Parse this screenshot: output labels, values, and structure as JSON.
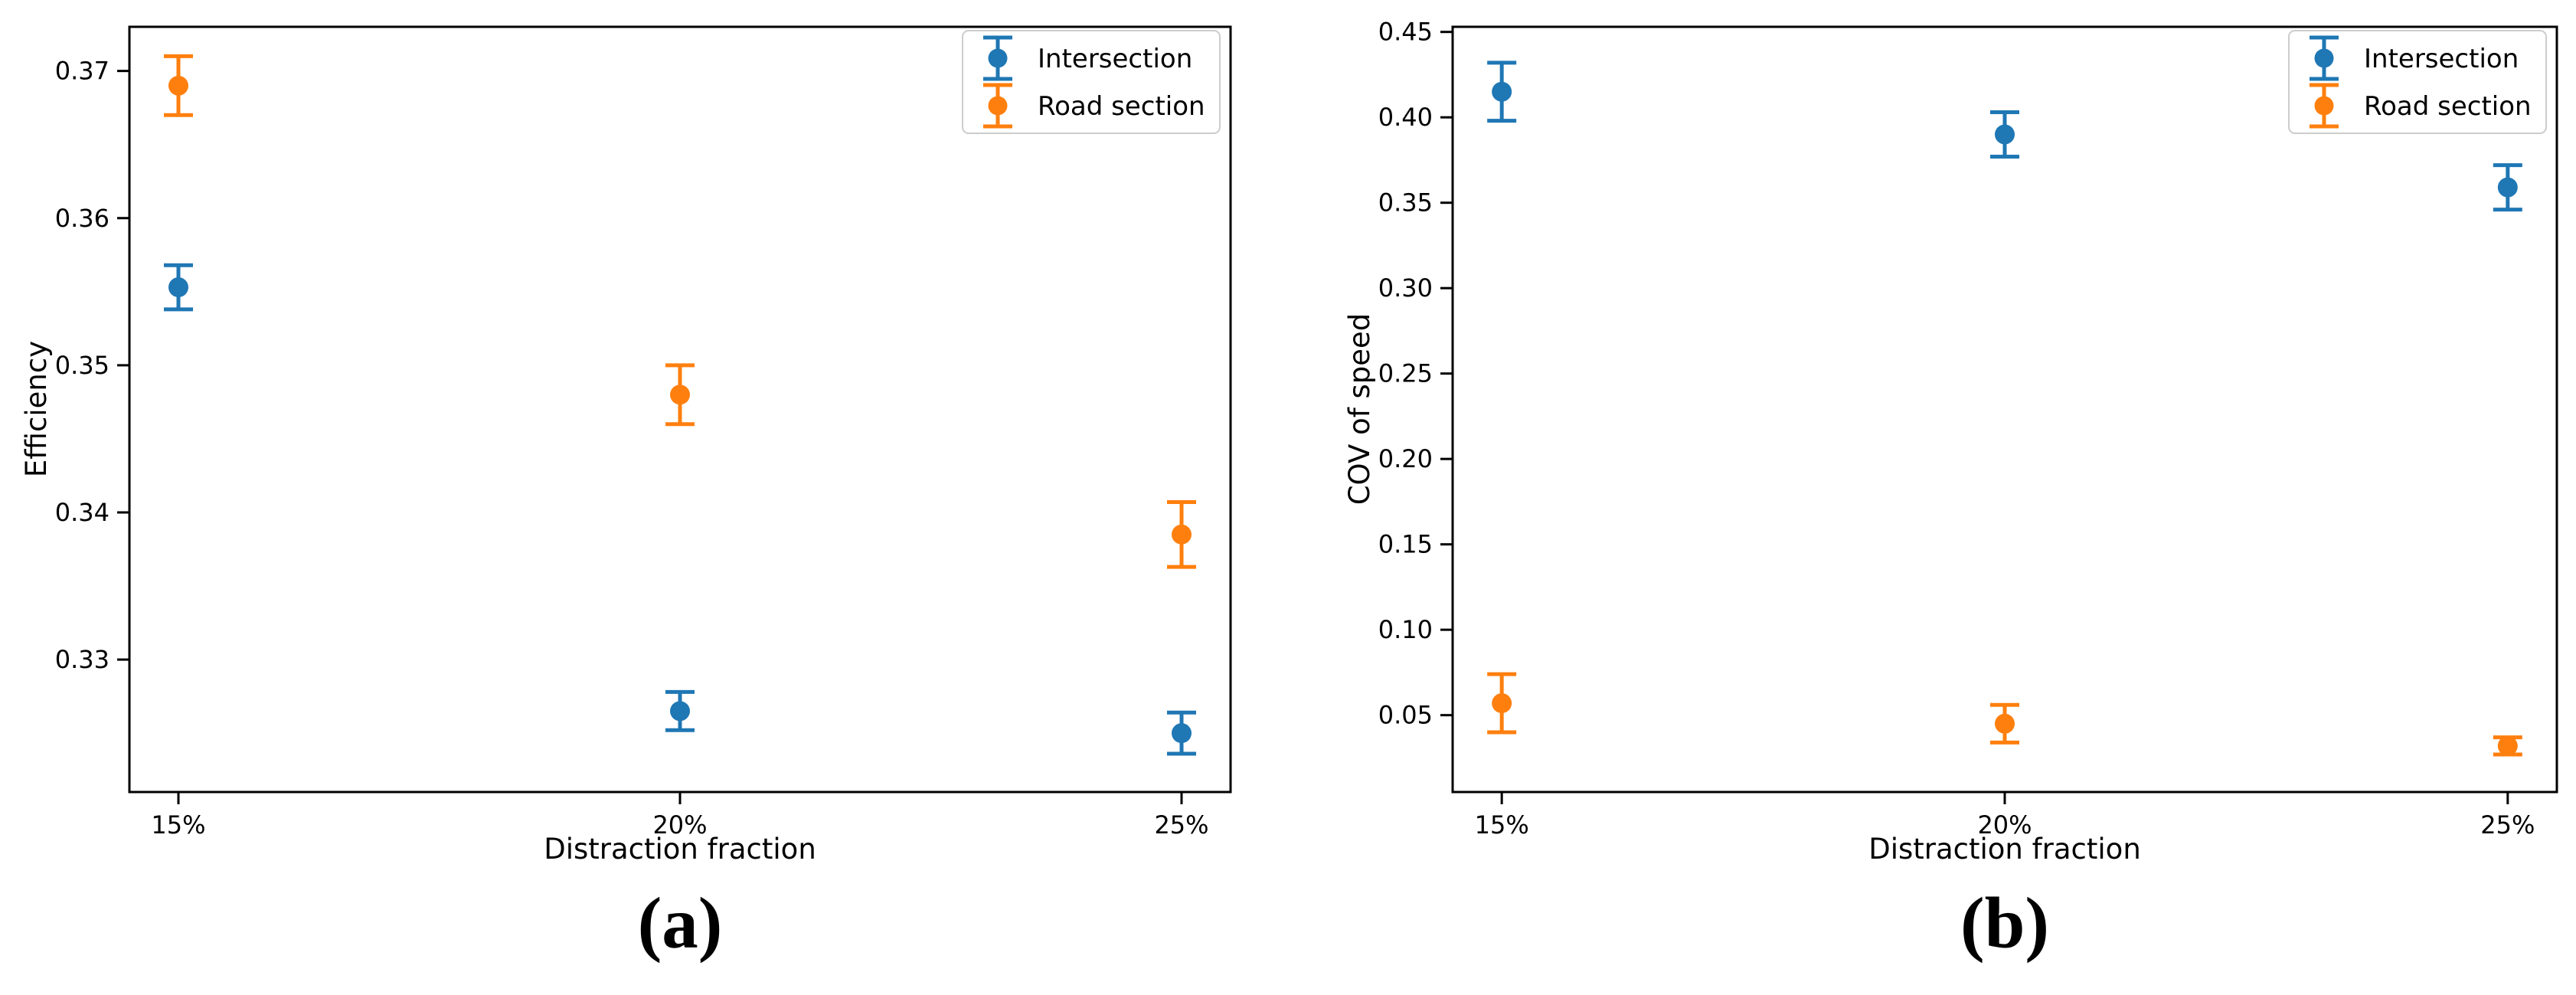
{
  "figure": {
    "background": "#ffffff",
    "accent_colors": {
      "intersection": "#1f77b4",
      "road_section": "#ff7f0e"
    },
    "legend": {
      "position": "upper right",
      "entries": [
        {
          "label": "Intersection",
          "color": "#1f77b4"
        },
        {
          "label": "Road section",
          "color": "#ff7f0e"
        }
      ]
    }
  },
  "chart_data": [
    {
      "type": "scatter",
      "style": "errorbar-points",
      "panel_label": "(a)",
      "xlabel": "Distraction fraction",
      "ylabel": "Efficiency",
      "categories": [
        "15%",
        "20%",
        "25%"
      ],
      "series": [
        {
          "name": "Intersection",
          "color": "#1f77b4",
          "values": [
            0.3553,
            0.3265,
            0.325
          ],
          "yerr": [
            0.0015,
            0.0013,
            0.0014
          ]
        },
        {
          "name": "Road section",
          "color": "#ff7f0e",
          "values": [
            0.369,
            0.348,
            0.3385
          ],
          "yerr": [
            0.002,
            0.002,
            0.0022
          ]
        }
      ],
      "ylim": [
        0.321,
        0.373
      ],
      "yticks": [
        "0.37",
        "0.36",
        "0.35",
        "0.34",
        "0.33"
      ],
      "grid": false,
      "legend_position": "upper right"
    },
    {
      "type": "scatter",
      "style": "errorbar-points",
      "panel_label": "(b)",
      "xlabel": "Distraction fraction",
      "ylabel": "COV of speed",
      "categories": [
        "15%",
        "20%",
        "25%"
      ],
      "series": [
        {
          "name": "Intersection",
          "color": "#1f77b4",
          "values": [
            0.415,
            0.39,
            0.359
          ],
          "yerr": [
            0.017,
            0.013,
            0.013
          ]
        },
        {
          "name": "Road section",
          "color": "#ff7f0e",
          "values": [
            0.057,
            0.045,
            0.032
          ],
          "yerr": [
            0.017,
            0.011,
            0.005
          ]
        }
      ],
      "ylim": [
        0.005,
        0.453
      ],
      "yticks": [
        "0.45",
        "0.40",
        "0.35",
        "0.30",
        "0.25",
        "0.20",
        "0.15",
        "0.10",
        "0.05"
      ],
      "grid": false,
      "legend_position": "upper right"
    }
  ]
}
